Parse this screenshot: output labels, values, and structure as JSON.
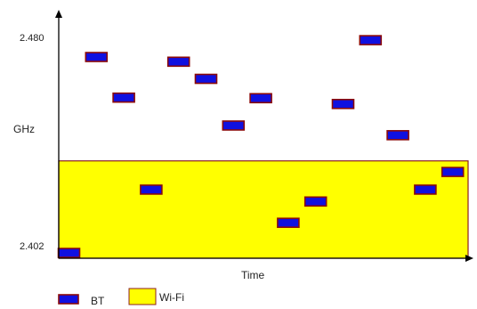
{
  "diagram": {
    "y_axis_label": "GHz",
    "y_tick_top": "2.480",
    "y_tick_bottom": "2.402",
    "x_axis_label": "Time",
    "legend": [
      {
        "key": "bt",
        "label": "BT"
      },
      {
        "key": "wifi",
        "label": "Wi-Fi"
      }
    ],
    "colors": {
      "bt_fill": "#1010e0",
      "bt_border": "#8b0a0a",
      "wifi_fill": "#ffff00",
      "wifi_border": "#8b2020",
      "axis": "#000000"
    },
    "wifi_band": {
      "freq_low": 2.402,
      "freq_high": 2.4353
    },
    "bt_hops": [
      {
        "slot": 0,
        "freq": 2.402
      },
      {
        "slot": 1,
        "freq": 2.4729
      },
      {
        "slot": 2,
        "freq": 2.4582
      },
      {
        "slot": 3,
        "freq": 2.4249
      },
      {
        "slot": 4,
        "freq": 2.4712
      },
      {
        "slot": 5,
        "freq": 2.465
      },
      {
        "slot": 6,
        "freq": 2.4481
      },
      {
        "slot": 7,
        "freq": 2.458
      },
      {
        "slot": 8,
        "freq": 2.4129
      },
      {
        "slot": 9,
        "freq": 2.4206
      },
      {
        "slot": 10,
        "freq": 2.4559
      },
      {
        "slot": 11,
        "freq": 2.479
      },
      {
        "slot": 12,
        "freq": 2.4446
      },
      {
        "slot": 13,
        "freq": 2.4249
      },
      {
        "slot": 14,
        "freq": 2.4313
      }
    ]
  }
}
